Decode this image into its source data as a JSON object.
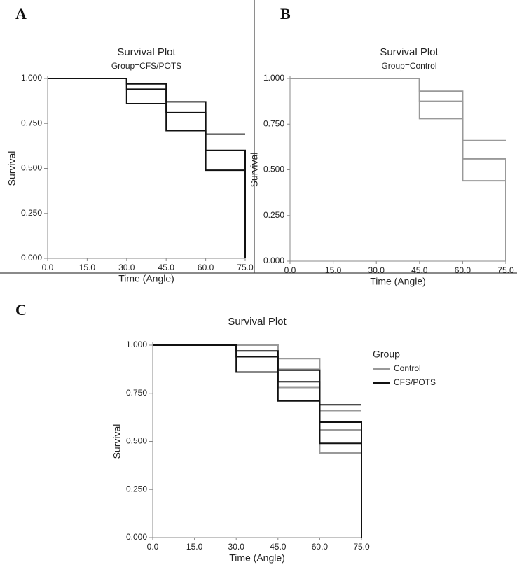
{
  "chart_data": [
    {
      "type": "step",
      "panel": "A",
      "title": "Survival Plot",
      "subtitle": "Group=CFS/POTS",
      "x_label": "Time (Angle)",
      "y_label": "Survival",
      "x": [
        0,
        30,
        45,
        60,
        75
      ],
      "series": [
        {
          "color": "#111111",
          "values": [
            1.0,
            0.94,
            0.81,
            0.6,
            0.0
          ],
          "upper": [
            1.0,
            0.97,
            0.87,
            0.69,
            0.69
          ],
          "lower": [
            1.0,
            0.86,
            0.71,
            0.49,
            0.49
          ]
        }
      ],
      "xlim": [
        0,
        75
      ],
      "ylim": [
        0,
        1
      ],
      "xticks": [
        {
          "value": 0,
          "label": "0.0"
        },
        {
          "value": 15,
          "label": "15.0"
        },
        {
          "value": 30,
          "label": "30.0"
        },
        {
          "value": 45,
          "label": "45.0"
        },
        {
          "value": 60,
          "label": "60.0"
        },
        {
          "value": 75,
          "label": "75.0"
        }
      ],
      "yticks": [
        {
          "value": 0,
          "label": "0.000"
        },
        {
          "value": 0.25,
          "label": "0.250"
        },
        {
          "value": 0.5,
          "label": "0.500"
        },
        {
          "value": 0.75,
          "label": "0.750"
        },
        {
          "value": 1,
          "label": "1.000"
        }
      ]
    },
    {
      "type": "step",
      "panel": "B",
      "title": "Survival Plot",
      "subtitle": "Group=Control",
      "x_label": "Time (Angle)",
      "y_label": "Survival",
      "x": [
        0,
        30,
        45,
        60,
        75
      ],
      "series": [
        {
          "color": "#999999",
          "values": [
            1.0,
            1.0,
            0.875,
            0.56,
            0.0
          ],
          "upper": [
            1.0,
            1.0,
            0.93,
            0.66,
            0.66
          ],
          "lower": [
            1.0,
            1.0,
            0.78,
            0.44,
            0.44
          ]
        }
      ],
      "xlim": [
        0,
        75
      ],
      "ylim": [
        0,
        1
      ],
      "xticks": [
        {
          "value": 0,
          "label": "0.0"
        },
        {
          "value": 15,
          "label": "15.0"
        },
        {
          "value": 30,
          "label": "30.0"
        },
        {
          "value": 45,
          "label": "45.0"
        },
        {
          "value": 60,
          "label": "60.0"
        },
        {
          "value": 75,
          "label": "75.0"
        }
      ],
      "yticks": [
        {
          "value": 0,
          "label": "0.000"
        },
        {
          "value": 0.25,
          "label": "0.250"
        },
        {
          "value": 0.5,
          "label": "0.500"
        },
        {
          "value": 0.75,
          "label": "0.750"
        },
        {
          "value": 1,
          "label": "1.000"
        }
      ]
    },
    {
      "type": "step",
      "panel": "C",
      "title": "Survival Plot",
      "x_label": "Time (Angle)",
      "y_label": "Survival",
      "legend_title": "Group",
      "legend": "right",
      "x": [
        0,
        30,
        45,
        60,
        75
      ],
      "series": [
        {
          "name": "Control",
          "color": "#999999",
          "values": [
            1.0,
            1.0,
            0.875,
            0.56,
            0.0
          ],
          "upper": [
            1.0,
            1.0,
            0.93,
            0.66,
            0.66
          ],
          "lower": [
            1.0,
            1.0,
            0.78,
            0.44,
            0.44
          ]
        },
        {
          "name": "CFS/POTS",
          "color": "#111111",
          "values": [
            1.0,
            0.94,
            0.81,
            0.6,
            0.0
          ],
          "upper": [
            1.0,
            0.97,
            0.87,
            0.69,
            0.69
          ],
          "lower": [
            1.0,
            0.86,
            0.71,
            0.49,
            0.49
          ]
        }
      ],
      "xlim": [
        0,
        75
      ],
      "ylim": [
        0,
        1
      ],
      "xticks": [
        {
          "value": 0,
          "label": "0.0"
        },
        {
          "value": 15,
          "label": "15.0"
        },
        {
          "value": 30,
          "label": "30.0"
        },
        {
          "value": 45,
          "label": "45.0"
        },
        {
          "value": 60,
          "label": "60.0"
        },
        {
          "value": 75,
          "label": "75.0"
        }
      ],
      "yticks": [
        {
          "value": 0,
          "label": "0.000"
        },
        {
          "value": 0.25,
          "label": "0.250"
        },
        {
          "value": 0.5,
          "label": "0.500"
        },
        {
          "value": 0.75,
          "label": "0.750"
        },
        {
          "value": 1,
          "label": "1.000"
        }
      ]
    }
  ]
}
